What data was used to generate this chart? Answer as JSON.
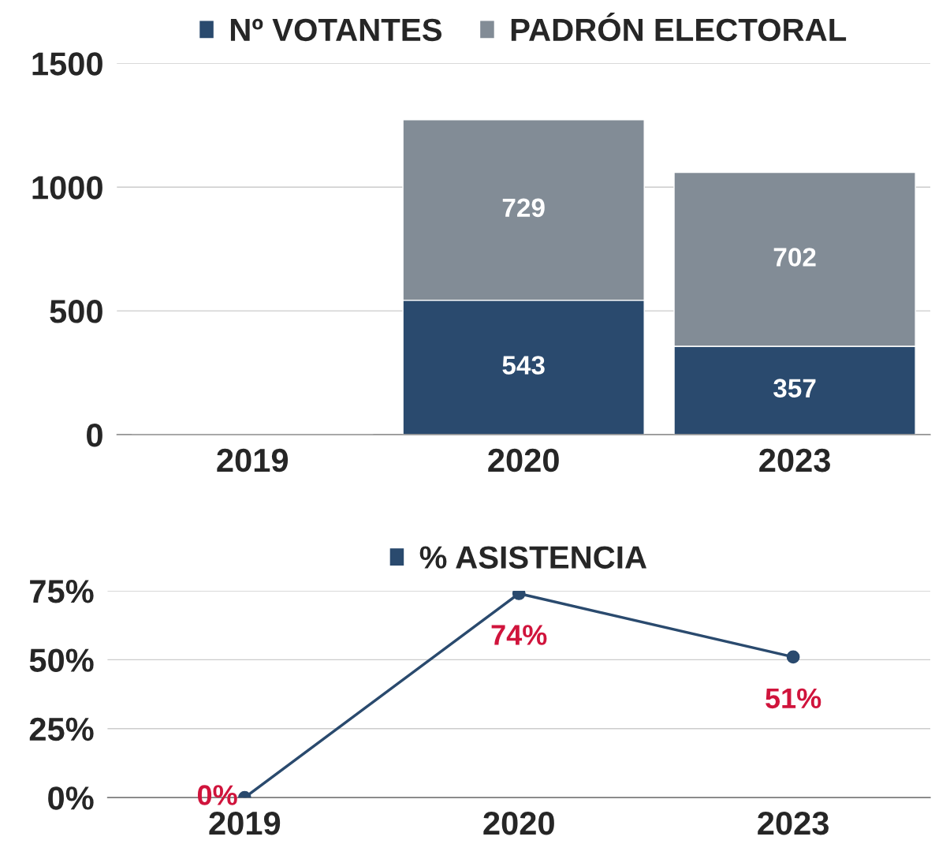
{
  "chart_data": [
    {
      "type": "bar",
      "stacked": true,
      "categories": [
        "2019",
        "2020",
        "2023"
      ],
      "series": [
        {
          "name": "Nº VOTANTES",
          "color": "#2a4a6e",
          "values": [
            null,
            543,
            357
          ]
        },
        {
          "name": "PADRÓN ELECTORAL",
          "color": "#828c96",
          "values": [
            null,
            729,
            702
          ]
        }
      ],
      "ylim": [
        0,
        1500
      ],
      "yticks": [
        0,
        500,
        1000,
        1500
      ],
      "grid": "y",
      "legend": "top",
      "data_labels": true
    },
    {
      "type": "line",
      "categories": [
        "2019",
        "2020",
        "2023"
      ],
      "series": [
        {
          "name": "% ASISTENCIA",
          "color": "#2a4a6e",
          "values": [
            0,
            74,
            51
          ],
          "value_labels": [
            "0%",
            "74%",
            "51%"
          ]
        }
      ],
      "ylim": [
        0,
        75
      ],
      "yticks": [
        {
          "value": 0,
          "label": "0%"
        },
        {
          "value": 25,
          "label": "25%"
        },
        {
          "value": 50,
          "label": "50%"
        },
        {
          "value": 75,
          "label": "75%"
        }
      ],
      "grid": "y",
      "legend": "top",
      "marker": "circle",
      "line_style": "solid"
    }
  ]
}
